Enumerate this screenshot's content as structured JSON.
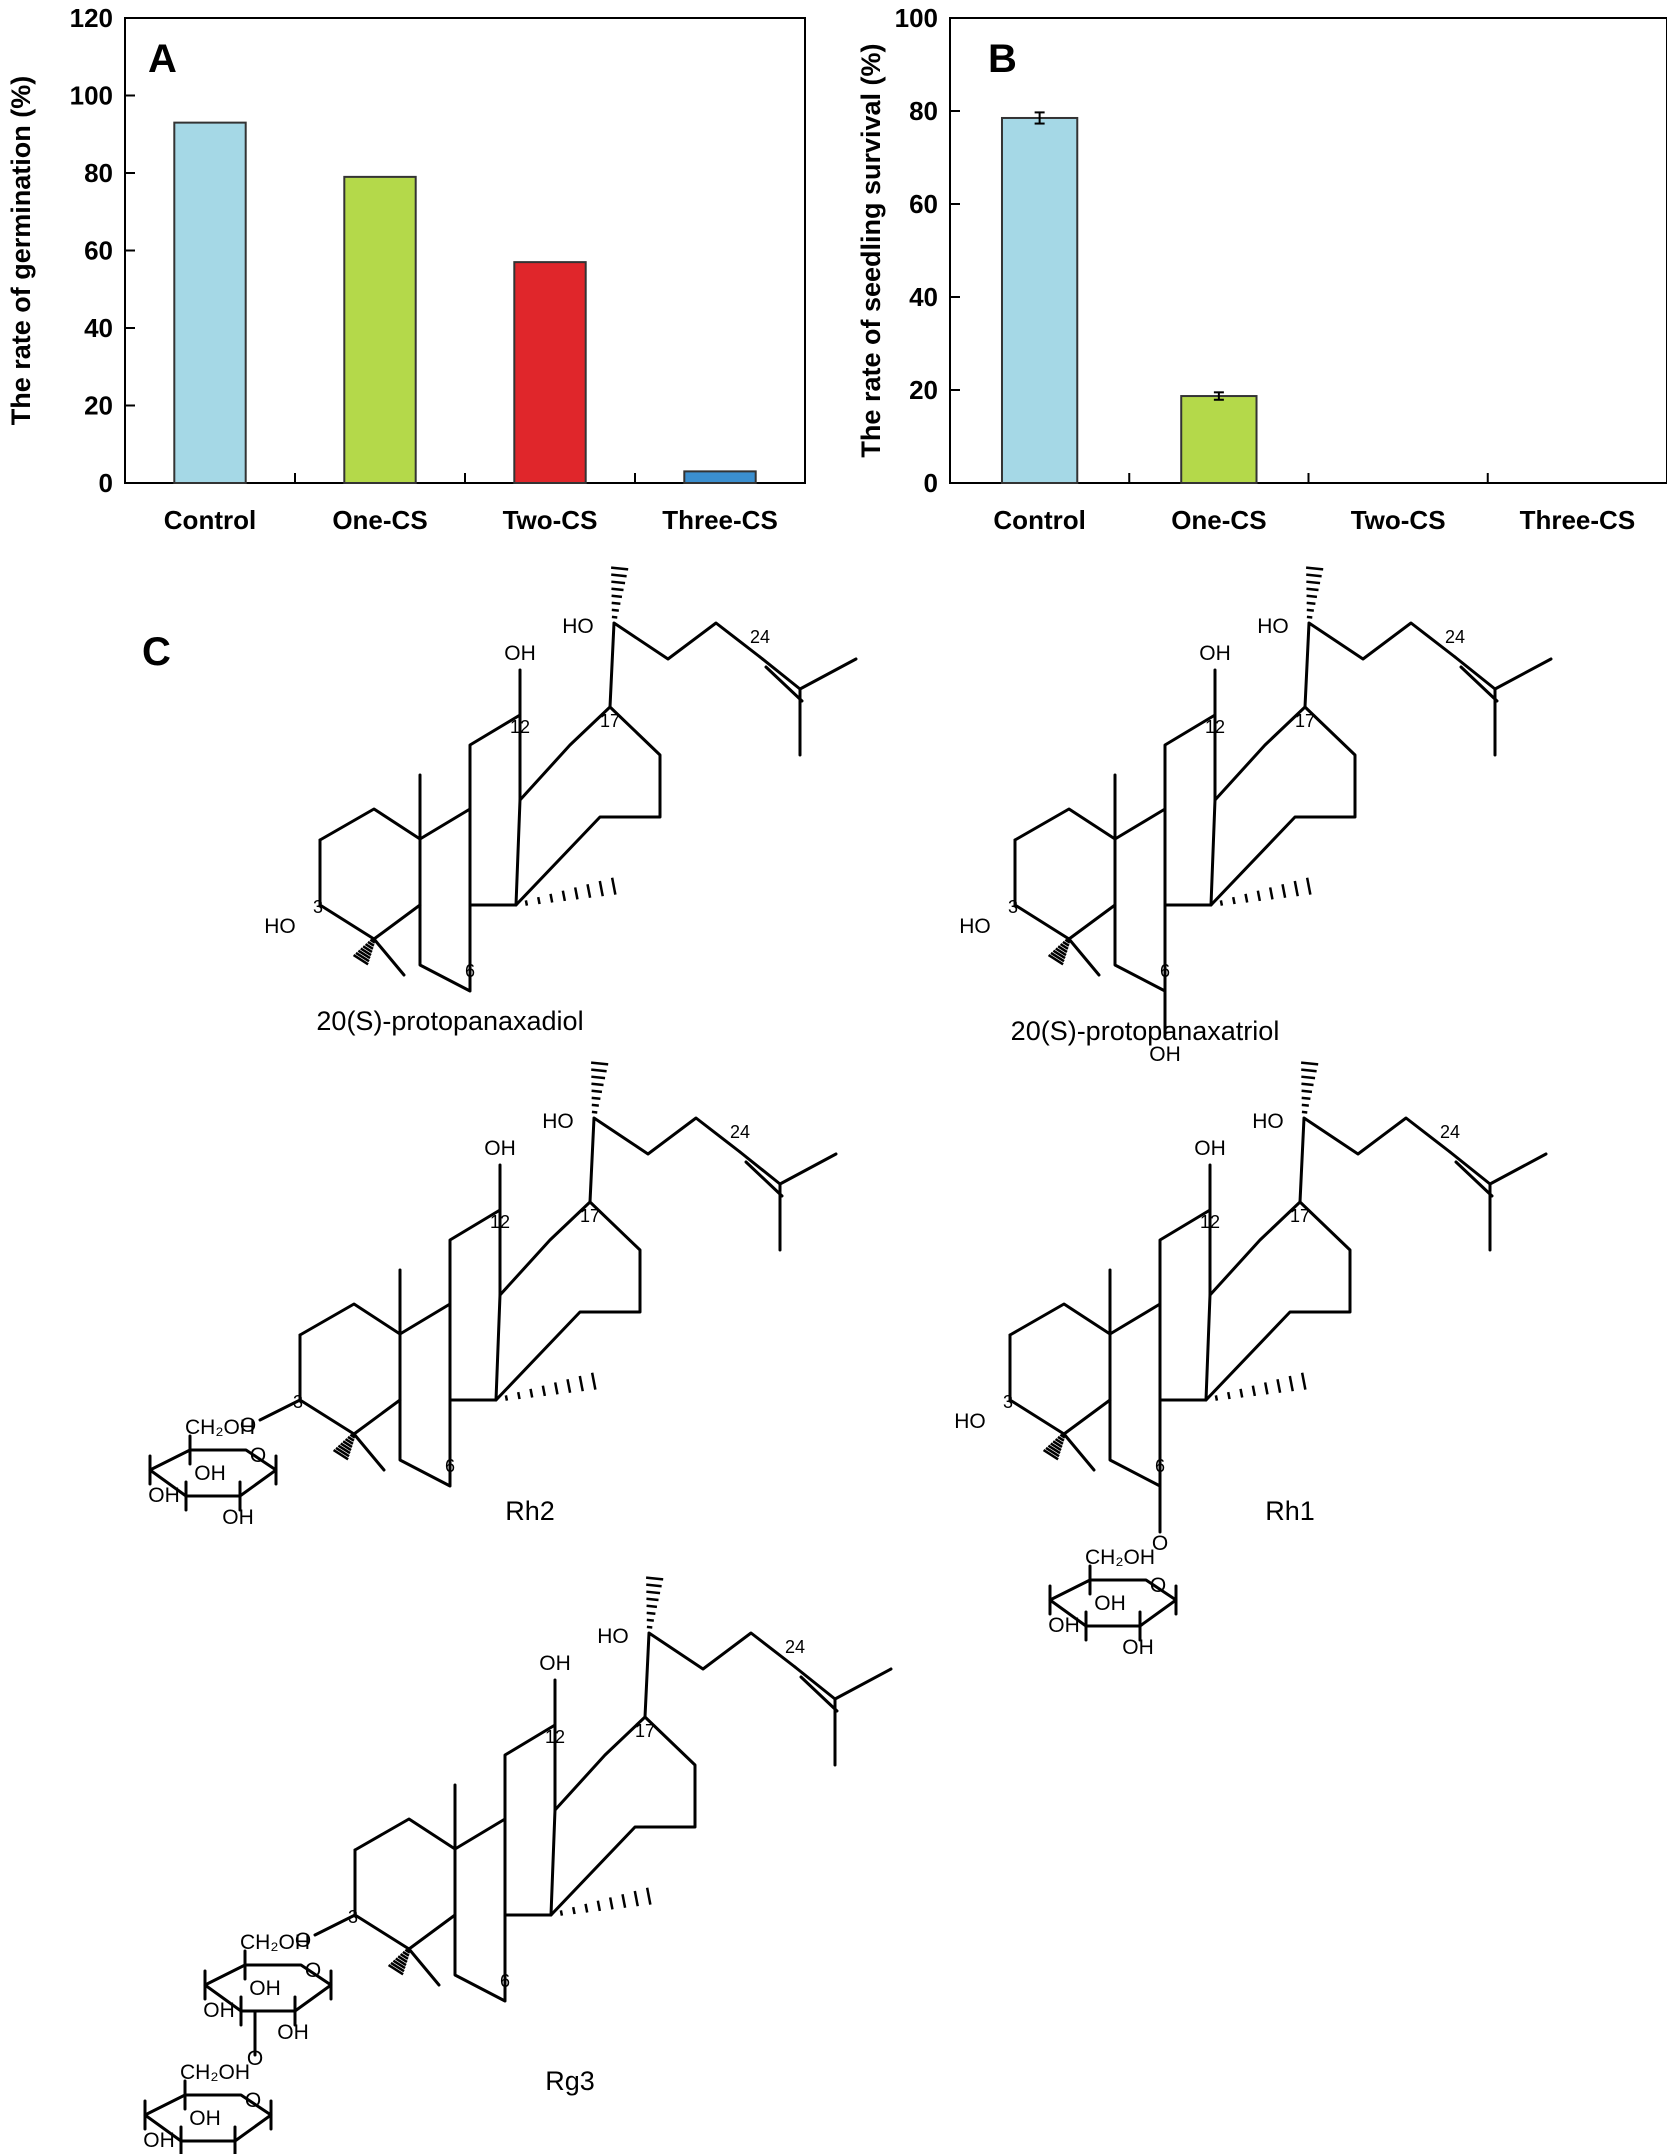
{
  "chart_data": [
    {
      "type": "bar",
      "panel": "A",
      "categories": [
        "Control",
        "One-CS",
        "Two-CS",
        "Three-CS"
      ],
      "values": [
        93,
        79,
        57,
        3
      ],
      "colors": [
        "#a5d8e6",
        "#b4d94a",
        "#e0262b",
        "#3b8fcf"
      ],
      "title": "",
      "xlabel": "",
      "ylabel": "The rate of germination (%)",
      "ylim": [
        0,
        120
      ],
      "yticks": [
        "0",
        "20",
        "40",
        "60",
        "80",
        "100",
        "120"
      ],
      "grid": false
    },
    {
      "type": "bar",
      "panel": "B",
      "categories": [
        "Control",
        "One-CS",
        "Two-CS",
        "Three-CS"
      ],
      "values": [
        78.5,
        18.7,
        0,
        0
      ],
      "errors": [
        1.2,
        0.8,
        0,
        0
      ],
      "colors": [
        "#a5d8e6",
        "#b4d94a",
        "#e0262b",
        "#3b8fcf"
      ],
      "title": "",
      "xlabel": "",
      "ylabel": "The rate of seedling survival (%)",
      "ylim": [
        0,
        100
      ],
      "yticks": [
        "0",
        "20",
        "40",
        "60",
        "80",
        "100"
      ],
      "grid": false
    }
  ],
  "panel_c": {
    "letter": "C",
    "molecules": [
      {
        "name": "20(S)-protopanaxadiol"
      },
      {
        "name": "20(S)-protopanaxatriol"
      },
      {
        "name": "Rh2"
      },
      {
        "name": "Rh1"
      },
      {
        "name": "Rg3"
      }
    ],
    "atom_labels": {
      "ho": "HO",
      "oh": "OH",
      "o": "O",
      "ch2oh": "CH₂OH",
      "c3": "3",
      "c6": "6",
      "c12": "12",
      "c17": "17",
      "c24": "24"
    }
  }
}
